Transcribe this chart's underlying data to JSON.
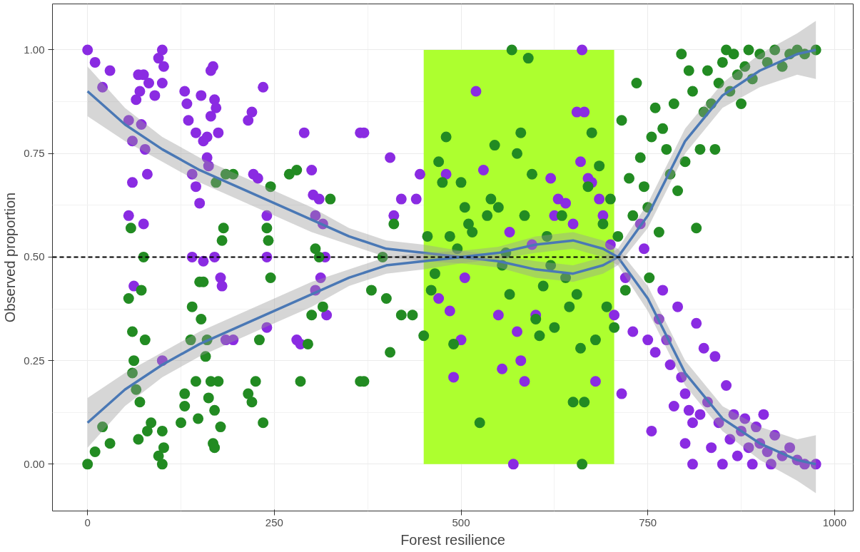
{
  "chart_data": {
    "type": "scatter",
    "xlabel": "Forest resilience",
    "ylabel": "Observed proportion",
    "xlim": [
      -47,
      1025
    ],
    "ylim": [
      -0.113,
      1.111
    ],
    "xticks": [
      0,
      250,
      500,
      750,
      1000
    ],
    "yticks": [
      {
        "value": 0,
        "label": "0.00"
      },
      {
        "value": 0.25,
        "label": "0.25"
      },
      {
        "value": 0.5,
        "label": "0.50"
      },
      {
        "value": 0.75,
        "label": "0.75"
      },
      {
        "value": 1,
        "label": "1.00"
      }
    ],
    "grid": true,
    "bands": [
      {
        "axis": "x",
        "from": 450,
        "to": 705,
        "color": "#adff2f"
      }
    ],
    "ref_lines": [
      {
        "axis": "y",
        "value": 0.5,
        "line_style": "dashed",
        "color": "#000000"
      }
    ],
    "series": [
      {
        "marker": "circle",
        "color": "#8a2be2",
        "x": [
          0,
          10,
          20,
          30,
          55,
          55,
          60,
          60,
          62,
          65,
          68,
          70,
          72,
          75,
          75,
          77,
          80,
          82,
          90,
          95,
          100,
          100,
          102,
          130,
          133,
          135,
          140,
          145,
          145,
          150,
          152,
          155,
          160,
          160,
          162,
          165,
          165,
          168,
          170,
          172,
          175,
          170,
          178,
          180,
          195,
          100,
          185,
          215,
          220,
          222,
          228,
          235,
          240,
          240,
          240,
          140,
          155,
          280,
          285,
          290,
          300,
          302,
          305,
          310,
          312,
          315,
          318,
          320,
          305,
          370,
          365,
          405,
          410,
          420,
          440,
          445,
          470,
          480,
          485,
          490,
          500,
          505,
          520,
          530,
          550,
          555,
          565,
          570,
          575,
          580,
          585,
          595,
          600,
          620,
          625,
          630,
          640,
          650,
          655,
          660,
          662,
          665,
          670,
          675,
          680,
          685,
          690,
          700,
          705,
          715,
          720,
          730,
          740,
          745,
          750,
          755,
          760,
          765,
          770,
          775,
          780,
          785,
          790,
          795,
          800,
          800,
          805,
          810,
          810,
          815,
          820,
          825,
          830,
          835,
          840,
          845,
          850,
          855,
          860,
          865,
          870,
          875,
          880,
          885,
          890,
          895,
          900,
          905,
          910,
          915,
          920,
          930,
          940,
          950,
          960,
          975
        ],
        "values": [
          1.0,
          0.97,
          0.91,
          0.95,
          0.83,
          0.6,
          0.78,
          0.68,
          0.43,
          0.88,
          0.94,
          0.9,
          0.82,
          0.94,
          0.58,
          0.76,
          0.7,
          0.92,
          0.89,
          0.98,
          1.0,
          0.92,
          0.96,
          0.9,
          0.87,
          0.83,
          0.7,
          0.67,
          0.8,
          0.63,
          0.89,
          0.78,
          0.74,
          0.79,
          0.72,
          0.84,
          0.95,
          0.96,
          0.88,
          0.86,
          0.8,
          0.5,
          0.45,
          0.43,
          0.3,
          0.25,
          0.3,
          0.83,
          0.85,
          0.7,
          0.69,
          0.91,
          0.6,
          0.5,
          0.33,
          0.5,
          0.49,
          0.3,
          0.29,
          0.8,
          0.71,
          0.65,
          0.6,
          0.64,
          0.45,
          0.58,
          0.5,
          0.36,
          0.42,
          0.8,
          0.8,
          0.74,
          0.6,
          0.64,
          0.64,
          0.7,
          0.4,
          0.7,
          0.37,
          0.21,
          0.3,
          0.45,
          0.9,
          0.71,
          0.36,
          0.23,
          0.56,
          0.0,
          0.32,
          0.25,
          0.2,
          0.53,
          0.36,
          0.69,
          0.6,
          0.64,
          0.63,
          0.58,
          0.85,
          0.73,
          1.0,
          0.85,
          0.69,
          0.68,
          0.2,
          0.64,
          0.6,
          0.53,
          0.36,
          0.17,
          0.45,
          0.32,
          0.58,
          0.52,
          0.3,
          0.08,
          0.27,
          0.35,
          0.42,
          0.3,
          0.24,
          0.14,
          0.38,
          0.21,
          0.17,
          0.05,
          0.13,
          0.1,
          0.0,
          0.34,
          0.12,
          0.28,
          0.15,
          0.04,
          0.26,
          0.1,
          0.0,
          0.19,
          0.06,
          0.12,
          0.02,
          0.08,
          0.11,
          0.04,
          0.0,
          0.09,
          0.05,
          0.12,
          0.03,
          0.0,
          0.07,
          0.02,
          0.04,
          0.01,
          0.0,
          0.0
        ]
      },
      {
        "marker": "circle",
        "color": "#228b22",
        "x": [
          0,
          10,
          20,
          30,
          55,
          58,
          60,
          60,
          62,
          65,
          68,
          70,
          72,
          75,
          77,
          80,
          85,
          95,
          100,
          100,
          102,
          125,
          130,
          130,
          138,
          140,
          145,
          148,
          150,
          152,
          155,
          158,
          160,
          162,
          165,
          168,
          170,
          170,
          172,
          175,
          178,
          180,
          182,
          185,
          195,
          215,
          220,
          225,
          230,
          235,
          240,
          242,
          245,
          245,
          270,
          280,
          285,
          295,
          300,
          305,
          310,
          315,
          325,
          365,
          370,
          380,
          395,
          400,
          405,
          410,
          420,
          435,
          450,
          455,
          460,
          465,
          470,
          475,
          480,
          485,
          490,
          495,
          500,
          505,
          510,
          515,
          525,
          535,
          540,
          545,
          550,
          555,
          560,
          565,
          568,
          575,
          580,
          585,
          590,
          595,
          600,
          605,
          610,
          615,
          620,
          625,
          635,
          640,
          645,
          650,
          655,
          660,
          662,
          665,
          670,
          675,
          680,
          685,
          690,
          695,
          700,
          705,
          710,
          715,
          720,
          725,
          730,
          735,
          740,
          745,
          750,
          752,
          755,
          760,
          765,
          770,
          775,
          780,
          785,
          790,
          795,
          800,
          805,
          810,
          815,
          820,
          825,
          830,
          835,
          840,
          845,
          850,
          855,
          860,
          865,
          870,
          875,
          880,
          885,
          890,
          900,
          910,
          920,
          930,
          940,
          950,
          960,
          975
        ],
        "values": [
          0.0,
          0.03,
          0.09,
          0.05,
          0.4,
          0.57,
          0.32,
          0.22,
          0.25,
          0.18,
          0.06,
          0.15,
          0.42,
          0.5,
          0.3,
          0.08,
          0.1,
          0.02,
          0.0,
          0.08,
          0.04,
          0.1,
          0.14,
          0.17,
          0.3,
          0.38,
          0.2,
          0.11,
          0.44,
          0.35,
          0.44,
          0.26,
          0.3,
          0.16,
          0.2,
          0.05,
          0.04,
          0.13,
          0.68,
          0.2,
          0.09,
          0.54,
          0.57,
          0.7,
          0.7,
          0.17,
          0.15,
          0.2,
          0.3,
          0.1,
          0.57,
          0.54,
          0.67,
          0.45,
          0.7,
          0.71,
          0.2,
          0.29,
          0.36,
          0.52,
          0.5,
          0.38,
          0.64,
          0.2,
          0.2,
          0.42,
          0.5,
          0.4,
          0.27,
          0.58,
          0.36,
          0.36,
          0.31,
          0.55,
          0.42,
          0.46,
          0.73,
          0.68,
          0.79,
          0.55,
          0.29,
          0.52,
          0.68,
          0.62,
          0.58,
          0.56,
          0.1,
          0.6,
          0.64,
          0.77,
          0.62,
          0.48,
          0.51,
          0.41,
          1.0,
          0.75,
          0.8,
          0.6,
          0.98,
          0.7,
          0.35,
          0.31,
          0.43,
          0.55,
          0.48,
          0.33,
          0.6,
          0.45,
          0.38,
          0.15,
          0.41,
          0.28,
          0.0,
          0.15,
          0.67,
          0.8,
          0.3,
          0.72,
          0.58,
          0.38,
          0.64,
          0.33,
          0.55,
          0.83,
          0.42,
          0.69,
          0.6,
          0.92,
          0.74,
          0.67,
          0.62,
          0.45,
          0.79,
          0.86,
          0.56,
          0.81,
          0.76,
          0.7,
          0.87,
          0.66,
          0.99,
          0.73,
          0.95,
          0.9,
          0.57,
          0.76,
          0.85,
          0.95,
          0.87,
          0.76,
          0.92,
          0.97,
          1.0,
          0.9,
          0.99,
          0.94,
          0.87,
          0.96,
          1.0,
          0.93,
          0.99,
          0.97,
          1.0,
          0.96,
          0.99,
          1.0,
          0.99,
          1.0
        ]
      },
      {
        "type": "line",
        "color": "#4a78b5",
        "x": [
          0,
          50,
          100,
          150,
          200,
          250,
          300,
          350,
          400,
          450,
          500,
          550,
          600,
          650,
          690,
          710,
          750,
          800,
          850,
          900,
          950,
          975
        ],
        "values": [
          0.9,
          0.82,
          0.76,
          0.71,
          0.67,
          0.63,
          0.59,
          0.55,
          0.52,
          0.51,
          0.5,
          0.49,
          0.47,
          0.46,
          0.48,
          0.5,
          0.4,
          0.22,
          0.11,
          0.05,
          0.01,
          0.0
        ],
        "lower": [
          0.84,
          0.78,
          0.73,
          0.68,
          0.64,
          0.6,
          0.56,
          0.53,
          0.5,
          0.49,
          0.485,
          0.475,
          0.45,
          0.44,
          0.46,
          0.48,
          0.37,
          0.19,
          0.08,
          0.01,
          -0.04,
          -0.07
        ],
        "upper": [
          0.96,
          0.86,
          0.79,
          0.74,
          0.7,
          0.66,
          0.62,
          0.57,
          0.54,
          0.53,
          0.515,
          0.505,
          0.49,
          0.48,
          0.5,
          0.52,
          0.43,
          0.25,
          0.14,
          0.09,
          0.06,
          0.07
        ]
      },
      {
        "type": "line",
        "color": "#4a78b5",
        "x": [
          0,
          50,
          100,
          150,
          200,
          250,
          300,
          350,
          400,
          450,
          500,
          550,
          600,
          650,
          690,
          710,
          750,
          800,
          850,
          900,
          950,
          975
        ],
        "values": [
          0.1,
          0.18,
          0.24,
          0.29,
          0.33,
          0.37,
          0.41,
          0.45,
          0.48,
          0.49,
          0.5,
          0.51,
          0.53,
          0.54,
          0.52,
          0.5,
          0.6,
          0.78,
          0.89,
          0.95,
          0.99,
          1.0
        ],
        "lower": [
          0.04,
          0.14,
          0.21,
          0.26,
          0.3,
          0.34,
          0.38,
          0.43,
          0.46,
          0.47,
          0.485,
          0.495,
          0.51,
          0.52,
          0.5,
          0.48,
          0.57,
          0.75,
          0.86,
          0.91,
          0.94,
          0.93
        ],
        "upper": [
          0.16,
          0.22,
          0.27,
          0.32,
          0.36,
          0.4,
          0.44,
          0.47,
          0.5,
          0.51,
          0.515,
          0.525,
          0.55,
          0.56,
          0.54,
          0.52,
          0.63,
          0.81,
          0.92,
          0.99,
          1.04,
          1.07
        ]
      }
    ]
  }
}
